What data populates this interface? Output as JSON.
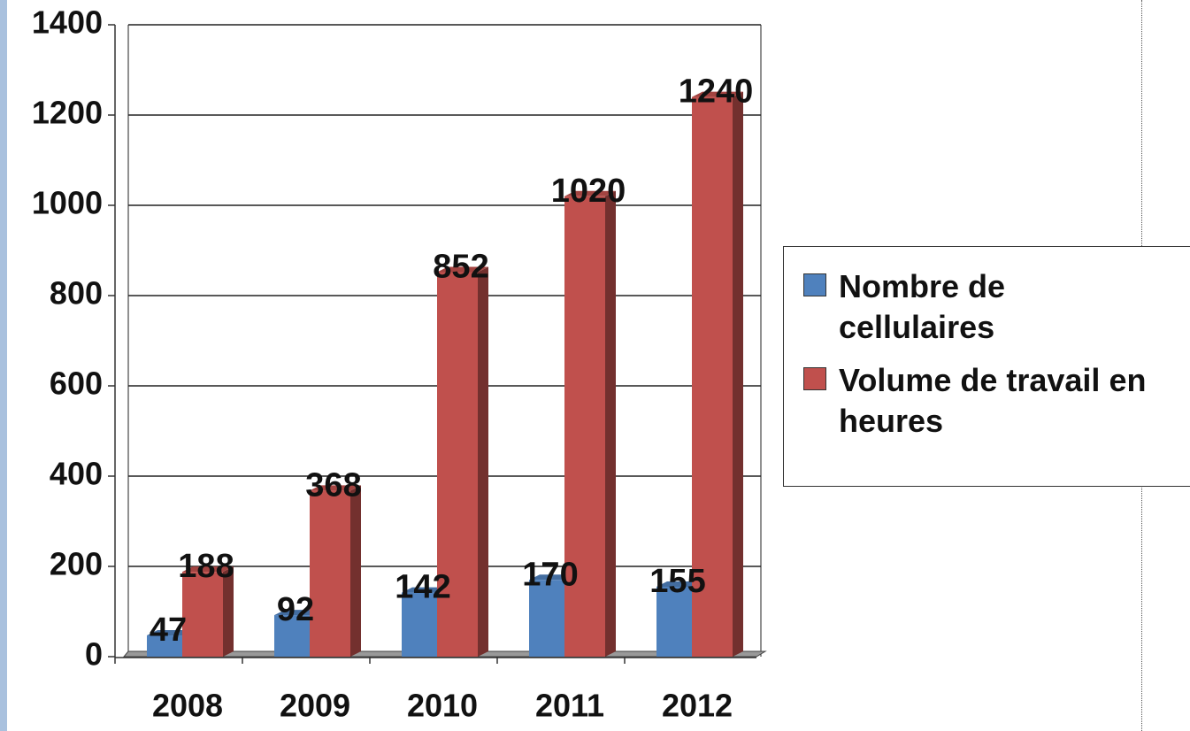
{
  "chart_data": {
    "type": "bar3d",
    "categories": [
      "2008",
      "2009",
      "2010",
      "2011",
      "2012"
    ],
    "series": [
      {
        "name": "Nombre de cellulaires",
        "color": "#4f81bd",
        "values": [
          47,
          92,
          142,
          170,
          155
        ]
      },
      {
        "name": "Volume de travail en heures",
        "color": "#c0504d",
        "values": [
          188,
          368,
          852,
          1020,
          1240
        ]
      }
    ],
    "ylim": [
      0,
      1400
    ],
    "yticks": [
      0,
      200,
      400,
      600,
      800,
      1000,
      1200,
      1400
    ],
    "grid": true,
    "legend": "right"
  }
}
